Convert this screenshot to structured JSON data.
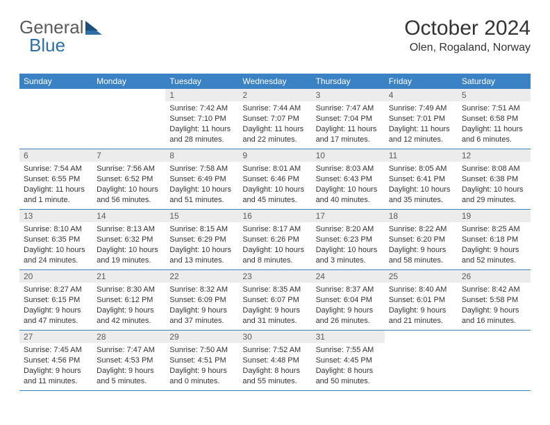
{
  "logo": {
    "text1": "General",
    "text2": "Blue"
  },
  "colors": {
    "header_bg": "#3b82c4",
    "header_text": "#ffffff",
    "daynum_bg": "#ececec",
    "daynum_text": "#5a5a5a",
    "body_text": "#333333",
    "logo_gray": "#5a5a5a",
    "logo_blue": "#2f6fa8",
    "border": "#3b82c4",
    "page_bg": "#ffffff"
  },
  "title": "October 2024",
  "location": "Olen, Rogaland, Norway",
  "day_names": [
    "Sunday",
    "Monday",
    "Tuesday",
    "Wednesday",
    "Thursday",
    "Friday",
    "Saturday"
  ],
  "typography": {
    "title_size": 30,
    "location_size": 16,
    "header_size": 12,
    "daynum_size": 12,
    "body_size": 11
  },
  "weeks": [
    [
      {
        "n": "",
        "sr": "",
        "ss": "",
        "dl": ""
      },
      {
        "n": "",
        "sr": "",
        "ss": "",
        "dl": ""
      },
      {
        "n": "1",
        "sr": "Sunrise: 7:42 AM",
        "ss": "Sunset: 7:10 PM",
        "dl": "Daylight: 11 hours and 28 minutes."
      },
      {
        "n": "2",
        "sr": "Sunrise: 7:44 AM",
        "ss": "Sunset: 7:07 PM",
        "dl": "Daylight: 11 hours and 22 minutes."
      },
      {
        "n": "3",
        "sr": "Sunrise: 7:47 AM",
        "ss": "Sunset: 7:04 PM",
        "dl": "Daylight: 11 hours and 17 minutes."
      },
      {
        "n": "4",
        "sr": "Sunrise: 7:49 AM",
        "ss": "Sunset: 7:01 PM",
        "dl": "Daylight: 11 hours and 12 minutes."
      },
      {
        "n": "5",
        "sr": "Sunrise: 7:51 AM",
        "ss": "Sunset: 6:58 PM",
        "dl": "Daylight: 11 hours and 6 minutes."
      }
    ],
    [
      {
        "n": "6",
        "sr": "Sunrise: 7:54 AM",
        "ss": "Sunset: 6:55 PM",
        "dl": "Daylight: 11 hours and 1 minute."
      },
      {
        "n": "7",
        "sr": "Sunrise: 7:56 AM",
        "ss": "Sunset: 6:52 PM",
        "dl": "Daylight: 10 hours and 56 minutes."
      },
      {
        "n": "8",
        "sr": "Sunrise: 7:58 AM",
        "ss": "Sunset: 6:49 PM",
        "dl": "Daylight: 10 hours and 51 minutes."
      },
      {
        "n": "9",
        "sr": "Sunrise: 8:01 AM",
        "ss": "Sunset: 6:46 PM",
        "dl": "Daylight: 10 hours and 45 minutes."
      },
      {
        "n": "10",
        "sr": "Sunrise: 8:03 AM",
        "ss": "Sunset: 6:43 PM",
        "dl": "Daylight: 10 hours and 40 minutes."
      },
      {
        "n": "11",
        "sr": "Sunrise: 8:05 AM",
        "ss": "Sunset: 6:41 PM",
        "dl": "Daylight: 10 hours and 35 minutes."
      },
      {
        "n": "12",
        "sr": "Sunrise: 8:08 AM",
        "ss": "Sunset: 6:38 PM",
        "dl": "Daylight: 10 hours and 29 minutes."
      }
    ],
    [
      {
        "n": "13",
        "sr": "Sunrise: 8:10 AM",
        "ss": "Sunset: 6:35 PM",
        "dl": "Daylight: 10 hours and 24 minutes."
      },
      {
        "n": "14",
        "sr": "Sunrise: 8:13 AM",
        "ss": "Sunset: 6:32 PM",
        "dl": "Daylight: 10 hours and 19 minutes."
      },
      {
        "n": "15",
        "sr": "Sunrise: 8:15 AM",
        "ss": "Sunset: 6:29 PM",
        "dl": "Daylight: 10 hours and 13 minutes."
      },
      {
        "n": "16",
        "sr": "Sunrise: 8:17 AM",
        "ss": "Sunset: 6:26 PM",
        "dl": "Daylight: 10 hours and 8 minutes."
      },
      {
        "n": "17",
        "sr": "Sunrise: 8:20 AM",
        "ss": "Sunset: 6:23 PM",
        "dl": "Daylight: 10 hours and 3 minutes."
      },
      {
        "n": "18",
        "sr": "Sunrise: 8:22 AM",
        "ss": "Sunset: 6:20 PM",
        "dl": "Daylight: 9 hours and 58 minutes."
      },
      {
        "n": "19",
        "sr": "Sunrise: 8:25 AM",
        "ss": "Sunset: 6:18 PM",
        "dl": "Daylight: 9 hours and 52 minutes."
      }
    ],
    [
      {
        "n": "20",
        "sr": "Sunrise: 8:27 AM",
        "ss": "Sunset: 6:15 PM",
        "dl": "Daylight: 9 hours and 47 minutes."
      },
      {
        "n": "21",
        "sr": "Sunrise: 8:30 AM",
        "ss": "Sunset: 6:12 PM",
        "dl": "Daylight: 9 hours and 42 minutes."
      },
      {
        "n": "22",
        "sr": "Sunrise: 8:32 AM",
        "ss": "Sunset: 6:09 PM",
        "dl": "Daylight: 9 hours and 37 minutes."
      },
      {
        "n": "23",
        "sr": "Sunrise: 8:35 AM",
        "ss": "Sunset: 6:07 PM",
        "dl": "Daylight: 9 hours and 31 minutes."
      },
      {
        "n": "24",
        "sr": "Sunrise: 8:37 AM",
        "ss": "Sunset: 6:04 PM",
        "dl": "Daylight: 9 hours and 26 minutes."
      },
      {
        "n": "25",
        "sr": "Sunrise: 8:40 AM",
        "ss": "Sunset: 6:01 PM",
        "dl": "Daylight: 9 hours and 21 minutes."
      },
      {
        "n": "26",
        "sr": "Sunrise: 8:42 AM",
        "ss": "Sunset: 5:58 PM",
        "dl": "Daylight: 9 hours and 16 minutes."
      }
    ],
    [
      {
        "n": "27",
        "sr": "Sunrise: 7:45 AM",
        "ss": "Sunset: 4:56 PM",
        "dl": "Daylight: 9 hours and 11 minutes."
      },
      {
        "n": "28",
        "sr": "Sunrise: 7:47 AM",
        "ss": "Sunset: 4:53 PM",
        "dl": "Daylight: 9 hours and 5 minutes."
      },
      {
        "n": "29",
        "sr": "Sunrise: 7:50 AM",
        "ss": "Sunset: 4:51 PM",
        "dl": "Daylight: 9 hours and 0 minutes."
      },
      {
        "n": "30",
        "sr": "Sunrise: 7:52 AM",
        "ss": "Sunset: 4:48 PM",
        "dl": "Daylight: 8 hours and 55 minutes."
      },
      {
        "n": "31",
        "sr": "Sunrise: 7:55 AM",
        "ss": "Sunset: 4:45 PM",
        "dl": "Daylight: 8 hours and 50 minutes."
      },
      {
        "n": "",
        "sr": "",
        "ss": "",
        "dl": ""
      },
      {
        "n": "",
        "sr": "",
        "ss": "",
        "dl": ""
      }
    ]
  ]
}
